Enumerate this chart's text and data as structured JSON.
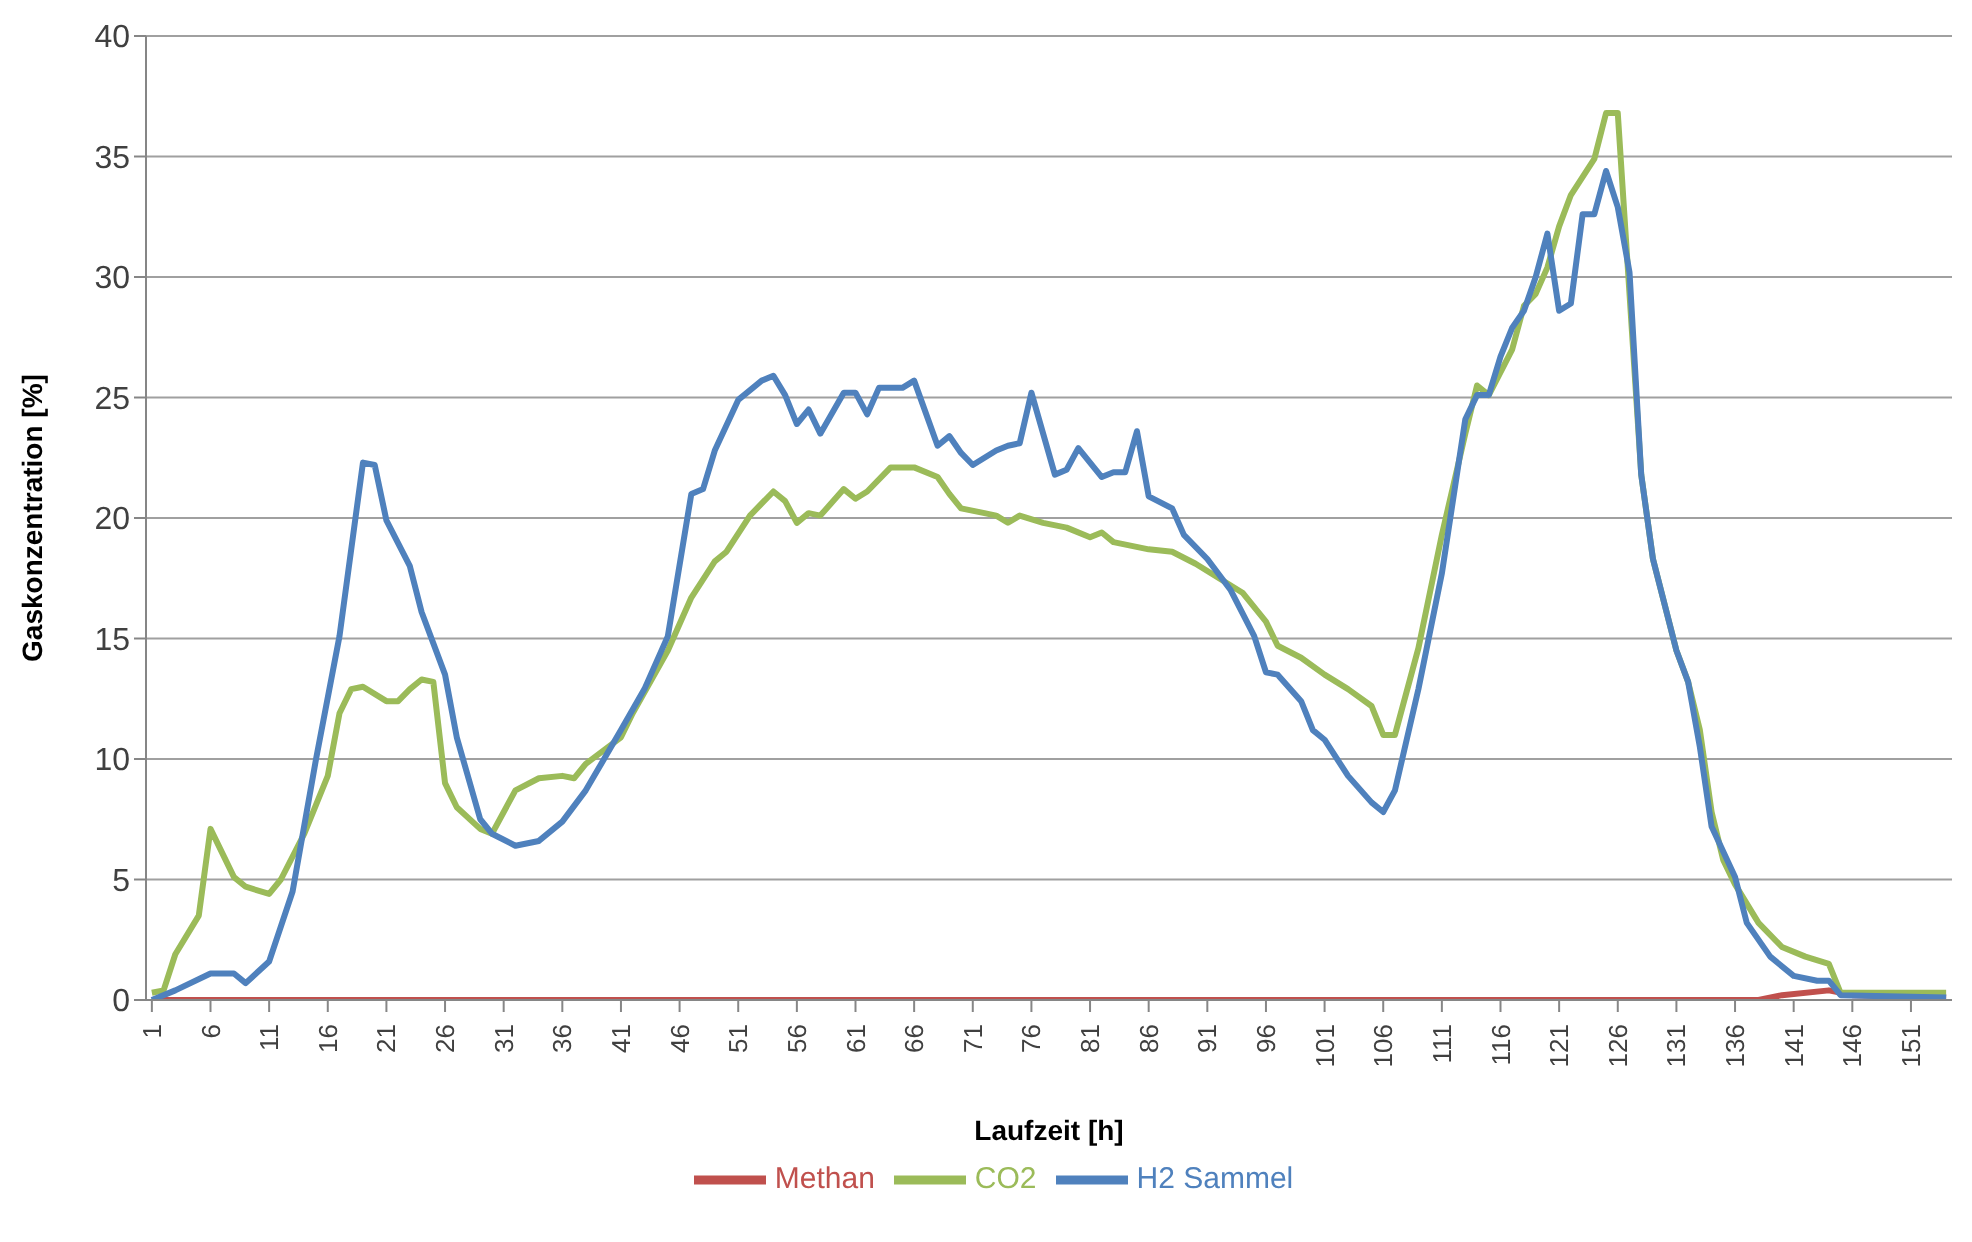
{
  "chart_data": {
    "type": "line",
    "xlabel": "Laufzeit [h]",
    "ylabel": "Gaskonzentration [%]",
    "xlim": [
      0.5,
      154.5
    ],
    "xticks": [
      1,
      6,
      11,
      16,
      21,
      26,
      31,
      36,
      41,
      46,
      51,
      56,
      61,
      66,
      71,
      76,
      81,
      86,
      91,
      96,
      101,
      106,
      111,
      116,
      121,
      126,
      131,
      136,
      141,
      146,
      151
    ],
    "ylim": [
      0,
      40
    ],
    "yticks": [
      0,
      5,
      10,
      15,
      20,
      25,
      30,
      35,
      40
    ],
    "grid": "y",
    "legend": "bottom",
    "marker": "none",
    "line_style": "solid",
    "series": [
      {
        "name": "Methan",
        "color": "#c0504d",
        "x": [
          1,
          138,
          140,
          144,
          146,
          154
        ],
        "values": [
          0,
          0,
          0.2,
          0.4,
          0.2,
          0.1
        ]
      },
      {
        "name": "CO2",
        "color": "#9bbb59",
        "x": [
          1,
          2,
          3,
          5,
          6,
          8,
          9,
          11,
          12,
          14,
          16,
          17,
          18,
          19,
          21,
          22,
          23,
          24,
          25,
          26,
          27,
          29,
          30,
          32,
          34,
          36,
          37,
          38,
          41,
          42,
          45,
          47,
          49,
          50,
          52,
          54,
          55,
          56,
          57,
          58,
          60,
          61,
          62,
          64,
          66,
          68,
          69,
          70,
          72,
          73,
          74,
          75,
          77,
          79,
          81,
          82,
          83,
          86,
          88,
          90,
          92,
          94,
          96,
          97,
          99,
          101,
          103,
          105,
          106,
          107,
          109,
          111,
          113,
          114,
          115,
          117,
          118,
          119,
          120,
          121,
          122,
          124,
          125,
          126,
          128,
          129,
          131,
          132,
          133,
          134,
          135,
          136,
          138,
          140,
          142,
          144,
          145,
          149,
          154
        ],
        "values": [
          0.3,
          0.4,
          1.9,
          3.5,
          7.1,
          5.1,
          4.7,
          4.4,
          5,
          6.9,
          9.3,
          11.9,
          12.9,
          13,
          12.4,
          12.4,
          12.9,
          13.3,
          13.2,
          9,
          8,
          7.1,
          6.9,
          8.7,
          9.2,
          9.3,
          9.2,
          9.8,
          10.9,
          11.9,
          14.5,
          16.7,
          18.2,
          18.6,
          20.1,
          21.1,
          20.7,
          19.8,
          20.2,
          20.1,
          21.2,
          20.8,
          21.1,
          22.1,
          22.1,
          21.7,
          21,
          20.4,
          20.2,
          20.1,
          19.8,
          20.1,
          19.8,
          19.6,
          19.2,
          19.4,
          19,
          18.7,
          18.6,
          18.1,
          17.5,
          16.9,
          15.7,
          14.7,
          14.2,
          13.5,
          12.9,
          12.2,
          11,
          11,
          14.6,
          19.3,
          23.5,
          25.5,
          25.1,
          27,
          28.8,
          29.3,
          30.4,
          32.1,
          33.4,
          34.9,
          36.8,
          36.8,
          21.8,
          18.3,
          14.5,
          13.2,
          11.2,
          7.8,
          5.8,
          4.8,
          3.2,
          2.2,
          1.8,
          1.5,
          0.3,
          0.3,
          0.3
        ]
      },
      {
        "name": "H2 Sammel",
        "color": "#4f81bd",
        "x": [
          1,
          3,
          6,
          8,
          9,
          11,
          13,
          15,
          17,
          19,
          20,
          21,
          23,
          24,
          26,
          27,
          29,
          30,
          32,
          34,
          36,
          38,
          41,
          43,
          45,
          47,
          48,
          49,
          51,
          53,
          54,
          55,
          56,
          57,
          58,
          60,
          61,
          62,
          63,
          65,
          66,
          68,
          69,
          70,
          71,
          73,
          74,
          75,
          76,
          78,
          79,
          80,
          82,
          83,
          84,
          85,
          86,
          88,
          89,
          91,
          93,
          95,
          96,
          97,
          99,
          100,
          101,
          103,
          105,
          106,
          107,
          109,
          111,
          113,
          114,
          115,
          116,
          117,
          118,
          119,
          120,
          121,
          122,
          123,
          124,
          125,
          126,
          127,
          128,
          129,
          131,
          132,
          133,
          134,
          136,
          137,
          139,
          141,
          143,
          144,
          145,
          154
        ],
        "values": [
          0,
          0.4,
          1.1,
          1.1,
          0.7,
          1.6,
          4.5,
          10,
          15.1,
          22.3,
          22.2,
          19.9,
          18,
          16.1,
          13.5,
          10.9,
          7.5,
          6.9,
          6.4,
          6.6,
          7.4,
          8.7,
          11.2,
          12.9,
          15.1,
          21,
          21.2,
          22.8,
          24.9,
          25.7,
          25.9,
          25.1,
          23.9,
          24.5,
          23.5,
          25.2,
          25.2,
          24.3,
          25.4,
          25.4,
          25.7,
          23,
          23.4,
          22.7,
          22.2,
          22.8,
          23,
          23.1,
          25.2,
          21.8,
          22,
          22.9,
          21.7,
          21.9,
          21.9,
          23.6,
          20.9,
          20.4,
          19.3,
          18.3,
          17,
          15.1,
          13.6,
          13.5,
          12.4,
          11.2,
          10.8,
          9.3,
          8.2,
          7.8,
          8.7,
          12.9,
          17.7,
          24.1,
          25.1,
          25.1,
          26.7,
          27.9,
          28.6,
          30,
          31.8,
          28.6,
          28.9,
          32.6,
          32.6,
          34.4,
          32.9,
          30.2,
          21.8,
          18.3,
          14.5,
          13.2,
          10.5,
          7.2,
          5.1,
          3.2,
          1.8,
          1,
          0.8,
          0.8,
          0.2,
          0.1
        ]
      }
    ]
  }
}
